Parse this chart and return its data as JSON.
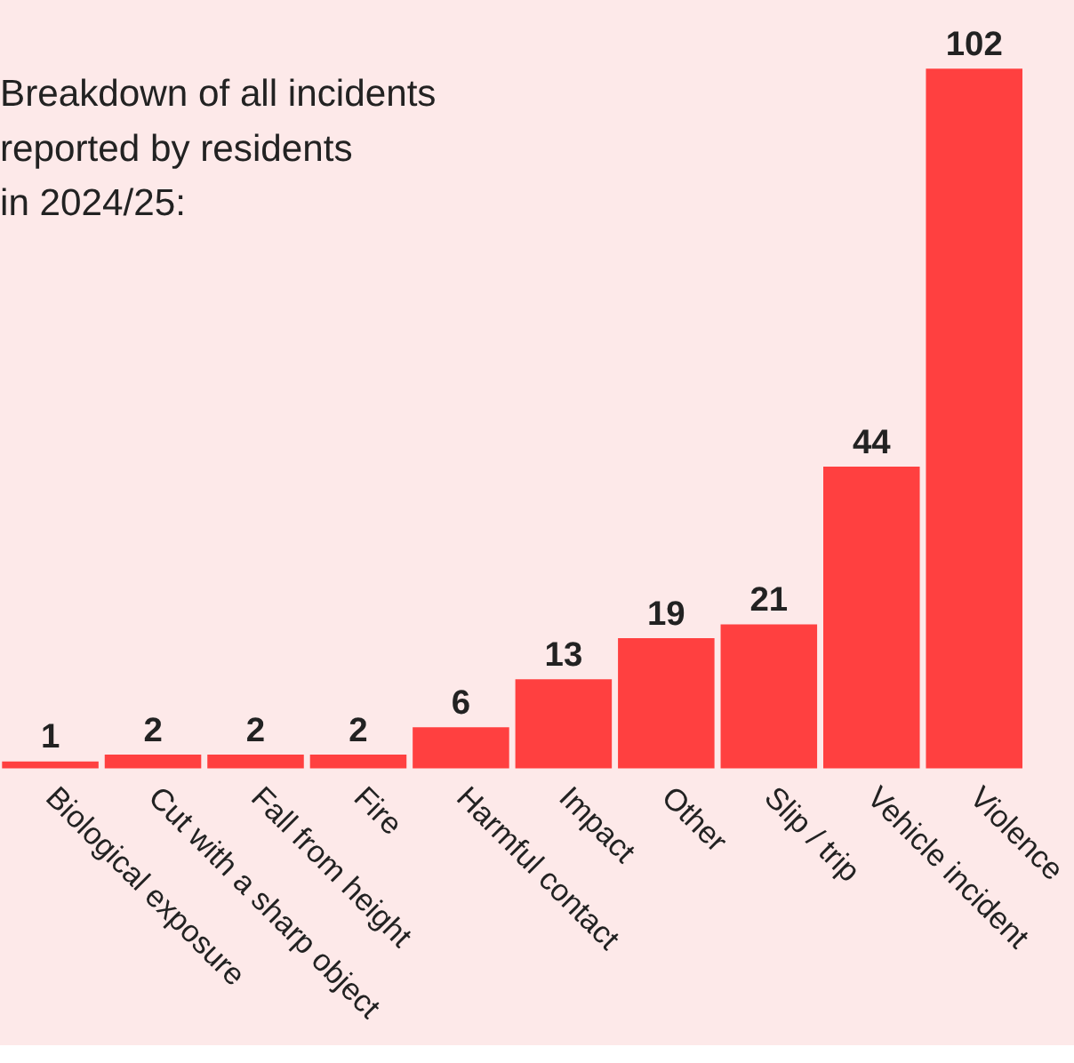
{
  "chart_data": {
    "type": "bar",
    "title": [
      "Breakdown of all incidents",
      "reported by residents",
      "in 2024/25:"
    ],
    "categories": [
      "Biological exposure",
      "Cut with a sharp object",
      "Fall from height",
      "Fire",
      "Harmful contact",
      "Impact",
      "Other",
      "Slip / trip",
      "Vehicle incident",
      "Violence"
    ],
    "values": [
      1,
      2,
      2,
      2,
      6,
      13,
      19,
      21,
      44,
      102
    ],
    "color": "#ff4040",
    "data_labels": true,
    "grid": false
  }
}
